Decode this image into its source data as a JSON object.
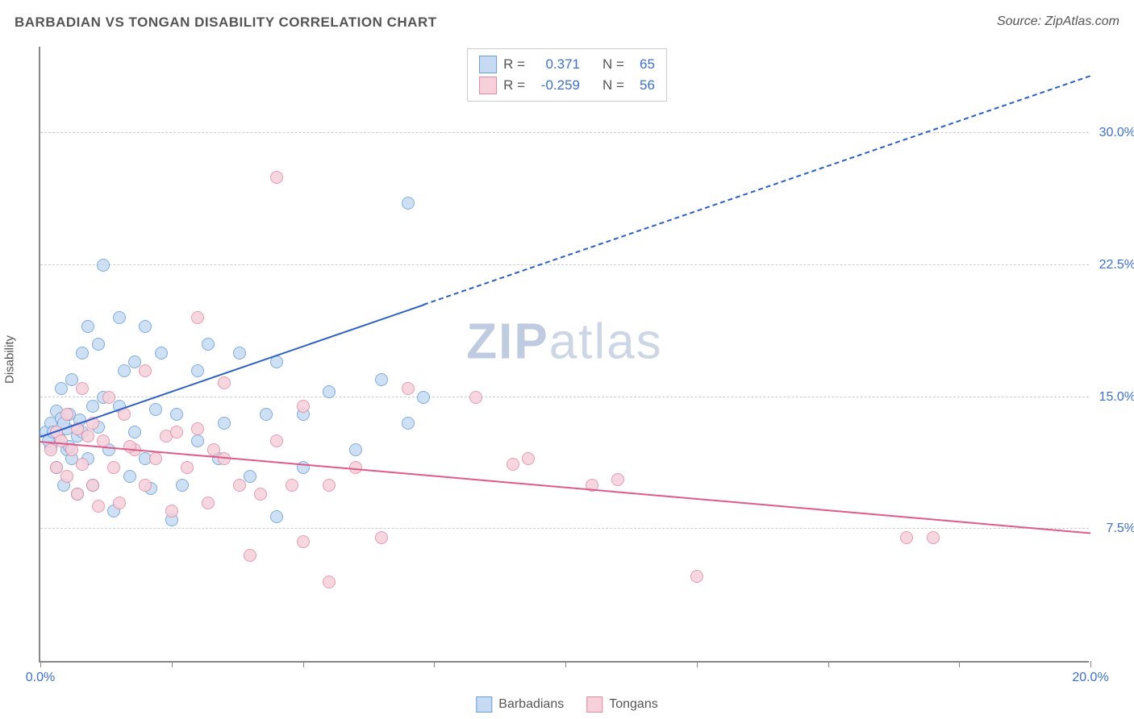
{
  "header": {
    "title": "BARBADIAN VS TONGAN DISABILITY CORRELATION CHART",
    "source": "Source: ZipAtlas.com"
  },
  "watermark": {
    "bold": "ZIP",
    "rest": "atlas"
  },
  "ylabel": "Disability",
  "chart": {
    "type": "scatter",
    "background_color": "#ffffff",
    "grid_color": "#cccccc",
    "axis_color": "#888888",
    "xlim": [
      0,
      20
    ],
    "ylim": [
      0,
      35
    ],
    "yticks": [
      7.5,
      15.0,
      22.5,
      30.0
    ],
    "ytick_labels": [
      "7.5%",
      "15.0%",
      "22.5%",
      "30.0%"
    ],
    "xticks": [
      0,
      2.5,
      5,
      7.5,
      10,
      12.5,
      15,
      17.5,
      20
    ],
    "xtick_labels": {
      "0": "0.0%",
      "20": "20.0%"
    },
    "label_color": "#3b6fd6",
    "label_fontsize": 16,
    "marker_size": 16,
    "series": [
      {
        "name": "Barbadians",
        "fill": "#c6dbf2",
        "stroke": "#6a9edb",
        "trend": {
          "color": "#2a5fc7",
          "x1": 0,
          "y1": 12.7,
          "x2": 7.3,
          "y2": 20.2,
          "dash_to_x": 20,
          "dash_to_y": 33.2
        },
        "R": "0.371",
        "N": "65",
        "points": [
          [
            0.1,
            13.0
          ],
          [
            0.2,
            12.2
          ],
          [
            0.2,
            13.5
          ],
          [
            0.3,
            11.0
          ],
          [
            0.3,
            14.2
          ],
          [
            0.35,
            12.7
          ],
          [
            0.4,
            13.8
          ],
          [
            0.4,
            15.5
          ],
          [
            0.45,
            10.0
          ],
          [
            0.5,
            12.0
          ],
          [
            0.5,
            13.2
          ],
          [
            0.55,
            14.0
          ],
          [
            0.6,
            11.5
          ],
          [
            0.6,
            16.0
          ],
          [
            0.7,
            9.5
          ],
          [
            0.7,
            12.8
          ],
          [
            0.8,
            17.5
          ],
          [
            0.8,
            13.0
          ],
          [
            0.9,
            19.0
          ],
          [
            0.9,
            11.5
          ],
          [
            1.0,
            14.5
          ],
          [
            1.0,
            10.0
          ],
          [
            1.1,
            18.0
          ],
          [
            1.1,
            13.3
          ],
          [
            1.2,
            22.5
          ],
          [
            1.2,
            15.0
          ],
          [
            1.3,
            12.0
          ],
          [
            1.4,
            8.5
          ],
          [
            1.5,
            14.5
          ],
          [
            1.5,
            19.5
          ],
          [
            1.6,
            16.5
          ],
          [
            1.7,
            10.5
          ],
          [
            1.8,
            13.0
          ],
          [
            1.8,
            17.0
          ],
          [
            2.0,
            19.0
          ],
          [
            2.0,
            11.5
          ],
          [
            2.1,
            9.8
          ],
          [
            2.2,
            14.3
          ],
          [
            2.3,
            17.5
          ],
          [
            2.5,
            8.0
          ],
          [
            2.6,
            14.0
          ],
          [
            2.7,
            10.0
          ],
          [
            3.0,
            16.5
          ],
          [
            3.0,
            12.5
          ],
          [
            3.2,
            18.0
          ],
          [
            3.4,
            11.5
          ],
          [
            3.5,
            13.5
          ],
          [
            3.8,
            17.5
          ],
          [
            4.0,
            10.5
          ],
          [
            4.3,
            14.0
          ],
          [
            4.5,
            17.0
          ],
          [
            4.5,
            8.2
          ],
          [
            5.0,
            14.0
          ],
          [
            5.0,
            11.0
          ],
          [
            5.5,
            15.3
          ],
          [
            6.0,
            12.0
          ],
          [
            6.5,
            16.0
          ],
          [
            7.0,
            13.5
          ],
          [
            7.0,
            26.0
          ],
          [
            7.3,
            15.0
          ],
          [
            0.15,
            12.5
          ],
          [
            0.25,
            13.0
          ],
          [
            0.45,
            13.5
          ],
          [
            0.55,
            12.2
          ],
          [
            0.75,
            13.7
          ]
        ]
      },
      {
        "name": "Tongans",
        "fill": "#f6d1da",
        "stroke": "#e28aa4",
        "trend": {
          "color": "#e05a88",
          "x1": 0,
          "y1": 12.4,
          "x2": 20,
          "y2": 7.2
        },
        "R": "-0.259",
        "N": "56",
        "points": [
          [
            0.2,
            12.0
          ],
          [
            0.3,
            11.0
          ],
          [
            0.3,
            13.0
          ],
          [
            0.4,
            12.5
          ],
          [
            0.5,
            10.5
          ],
          [
            0.5,
            14.0
          ],
          [
            0.6,
            12.0
          ],
          [
            0.7,
            9.5
          ],
          [
            0.7,
            13.2
          ],
          [
            0.8,
            15.5
          ],
          [
            0.8,
            11.2
          ],
          [
            0.9,
            12.8
          ],
          [
            1.0,
            10.0
          ],
          [
            1.0,
            13.5
          ],
          [
            1.1,
            8.8
          ],
          [
            1.2,
            12.5
          ],
          [
            1.3,
            15.0
          ],
          [
            1.4,
            11.0
          ],
          [
            1.5,
            9.0
          ],
          [
            1.6,
            14.0
          ],
          [
            1.8,
            12.0
          ],
          [
            2.0,
            10.0
          ],
          [
            2.0,
            16.5
          ],
          [
            2.2,
            11.5
          ],
          [
            2.4,
            12.8
          ],
          [
            2.5,
            8.5
          ],
          [
            2.8,
            11.0
          ],
          [
            3.0,
            13.2
          ],
          [
            3.0,
            19.5
          ],
          [
            3.2,
            9.0
          ],
          [
            3.5,
            11.5
          ],
          [
            3.5,
            15.8
          ],
          [
            3.8,
            10.0
          ],
          [
            4.0,
            6.0
          ],
          [
            4.2,
            9.5
          ],
          [
            4.5,
            12.5
          ],
          [
            4.5,
            27.5
          ],
          [
            4.8,
            10.0
          ],
          [
            5.0,
            6.8
          ],
          [
            5.0,
            14.5
          ],
          [
            5.5,
            10.0
          ],
          [
            5.5,
            4.5
          ],
          [
            6.0,
            11.0
          ],
          [
            6.5,
            7.0
          ],
          [
            7.0,
            15.5
          ],
          [
            8.3,
            15.0
          ],
          [
            9.0,
            11.2
          ],
          [
            9.3,
            11.5
          ],
          [
            10.5,
            10.0
          ],
          [
            11.0,
            10.3
          ],
          [
            12.5,
            4.8
          ],
          [
            16.5,
            7.0
          ],
          [
            17.0,
            7.0
          ],
          [
            1.7,
            12.2
          ],
          [
            2.6,
            13.0
          ],
          [
            3.3,
            12.0
          ]
        ]
      }
    ]
  },
  "legend_top": {
    "rows": [
      {
        "swatch_fill": "#c6dbf2",
        "swatch_stroke": "#6a9edb",
        "r_label": "R =",
        "r_val": "0.371",
        "n_label": "N =",
        "n_val": "65"
      },
      {
        "swatch_fill": "#f6d1da",
        "swatch_stroke": "#e28aa4",
        "r_label": "R =",
        "r_val": "-0.259",
        "n_label": "N =",
        "n_val": "56"
      }
    ]
  },
  "legend_bottom": [
    {
      "fill": "#c6dbf2",
      "stroke": "#6a9edb",
      "label": "Barbadians"
    },
    {
      "fill": "#f6d1da",
      "stroke": "#e28aa4",
      "label": "Tongans"
    }
  ]
}
